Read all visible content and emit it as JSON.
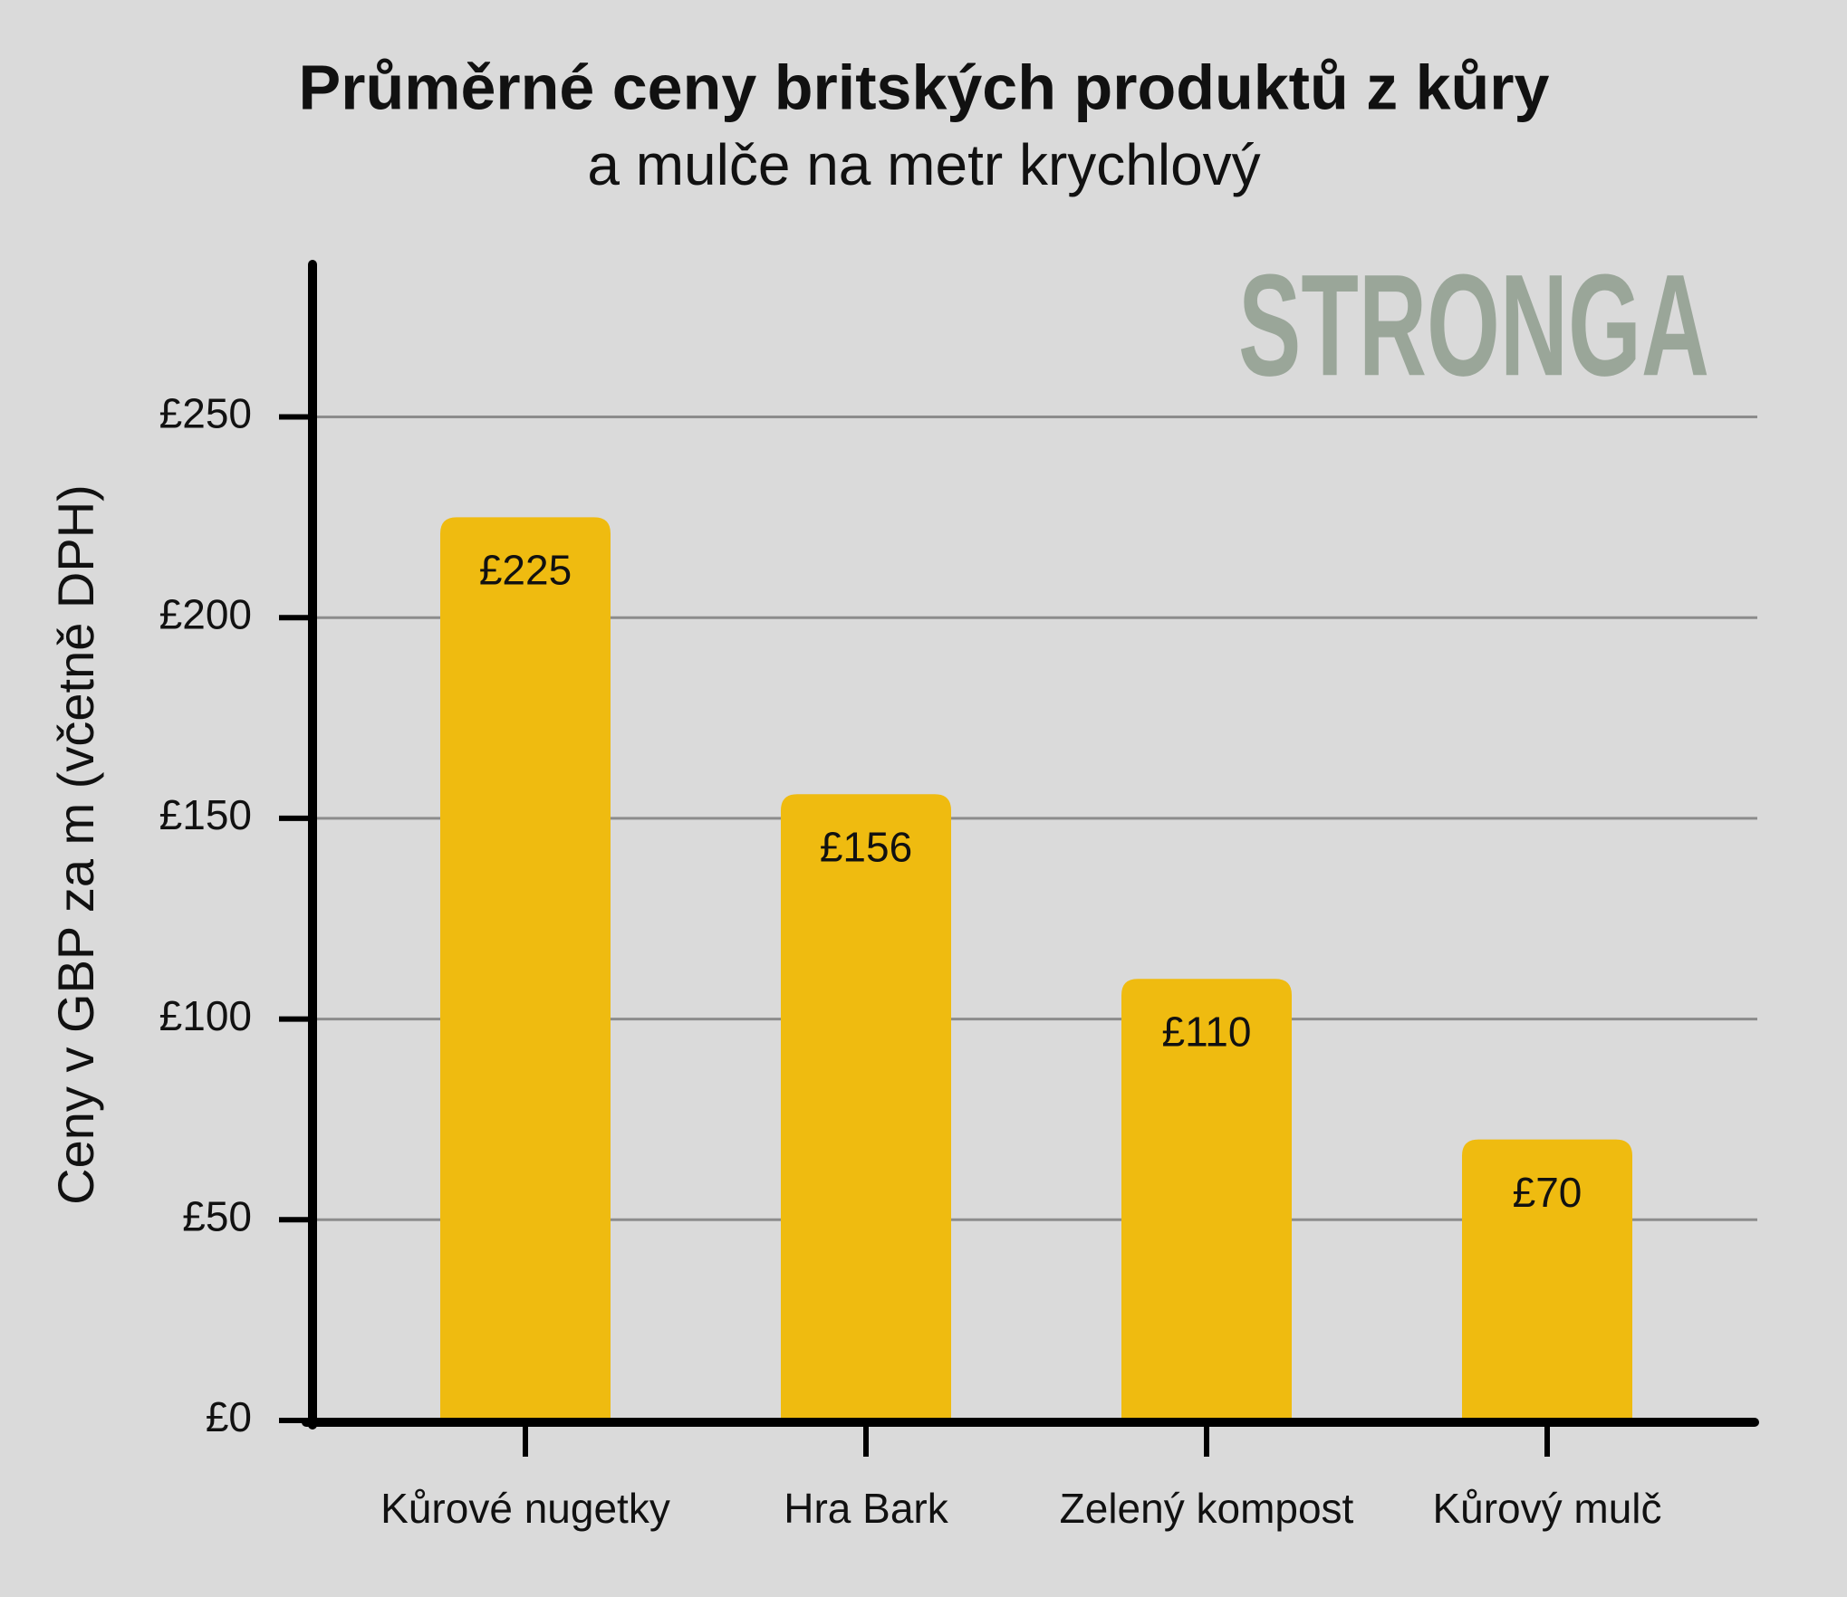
{
  "chart_data": {
    "type": "bar",
    "title": "Průměrné ceny britských produktů z kůry",
    "subtitle": "a mulče na metr krychlový",
    "watermark": "STRONGA",
    "y_label": "Ceny v GBP za m (včetně DPH)",
    "categories": [
      "Kůrové nugetky",
      "Hra Bark",
      "Zelený kompost",
      "Kůrový mulč"
    ],
    "values": [
      225,
      156,
      110,
      70
    ],
    "value_labels": [
      "£225",
      "£156",
      "£110",
      "£70"
    ],
    "color": "#efbb10",
    "ylim": [
      0,
      288
    ],
    "yticks": [
      {
        "value": 0,
        "label": "£0"
      },
      {
        "value": 50,
        "label": "£50"
      },
      {
        "value": 100,
        "label": "£100"
      },
      {
        "value": 150,
        "label": "£150"
      },
      {
        "value": 200,
        "label": "£200"
      },
      {
        "value": 250,
        "label": "£250"
      }
    ],
    "grid": true
  }
}
